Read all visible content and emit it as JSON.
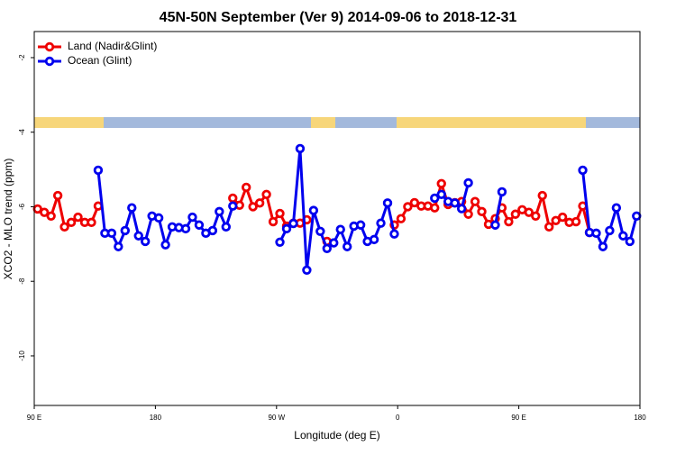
{
  "chart_data": {
    "type": "line",
    "title": "45N-50N September (Ver 9)   2014-09-06 to 2018-12-31",
    "x_label": "Longitude (deg E)",
    "y_label": "XCO2 - MLO trend (ppm)",
    "legend": "top-left",
    "x": [
      92.5,
      97.5,
      102.5,
      107.5,
      112.5,
      117.5,
      122.5,
      127.5,
      132.5,
      137.5,
      142.5,
      147.5,
      152.5,
      157.5,
      162.5,
      167.5,
      172.5,
      177.5,
      182.5,
      187.5,
      192.5,
      197.5,
      202.5,
      207.5,
      212.5,
      217.5,
      222.5,
      227.5,
      232.5,
      237.5,
      242.5,
      247.5,
      252.5,
      257.5,
      262.5,
      267.5,
      272.5,
      277.5,
      282.5,
      287.5,
      292.5,
      297.5,
      302.5,
      307.5,
      312.5,
      317.5,
      322.5,
      327.5,
      332.5,
      337.5,
      342.5,
      347.5,
      352.5,
      357.5,
      362.5,
      367.5,
      372.5,
      377.5,
      382.5,
      387.5,
      392.5,
      397.5,
      402.5,
      407.5,
      412.5,
      417.5,
      422.5,
      427.5,
      432.5,
      437.5,
      442.5,
      447.5,
      452.5,
      457.5,
      462.5,
      467.5,
      472.5,
      477.5,
      482.5,
      487.5,
      492.5,
      497.5,
      502.5,
      507.5,
      512.5,
      517.5,
      522.5,
      527.5,
      532.5,
      537.5
    ],
    "series": [
      {
        "name": "Land (Nadir&Glint)",
        "color": "#ee0000",
        "values": [
          -6.06,
          -6.15,
          -6.25,
          -5.7,
          -6.54,
          -6.42,
          -6.28,
          -6.42,
          -6.42,
          -5.98,
          null,
          null,
          null,
          null,
          null,
          null,
          null,
          null,
          null,
          null,
          null,
          null,
          null,
          null,
          null,
          null,
          null,
          null,
          null,
          -5.77,
          -5.96,
          -5.48,
          -6.0,
          -5.9,
          -5.67,
          -6.4,
          -6.18,
          -6.52,
          -6.44,
          -6.44,
          -6.35,
          null,
          null,
          -6.93,
          null,
          null,
          null,
          null,
          null,
          null,
          null,
          null,
          null,
          -6.49,
          -6.32,
          -6.0,
          -5.89,
          -5.98,
          -5.98,
          -6.03,
          -5.38,
          -5.94,
          -5.89,
          -5.86,
          -6.2,
          -5.86,
          -6.13,
          -6.47,
          -6.32,
          -6.03,
          -6.4,
          -6.2,
          -6.08,
          -6.15,
          -6.25,
          -5.7,
          -6.54,
          -6.37,
          -6.28,
          -6.42,
          -6.4,
          -5.98,
          -6.69,
          null,
          null,
          null,
          null,
          null,
          null,
          null
        ]
      },
      {
        "name": "Ocean (Glint)",
        "color": "#0000ee",
        "values": [
          null,
          null,
          null,
          null,
          null,
          null,
          null,
          null,
          null,
          -5.02,
          -6.71,
          -6.71,
          -7.07,
          -6.64,
          -6.03,
          -6.78,
          -6.93,
          -6.25,
          -6.3,
          -7.02,
          -6.54,
          -6.56,
          -6.59,
          -6.28,
          -6.49,
          -6.71,
          -6.64,
          -6.13,
          -6.54,
          -5.98,
          null,
          null,
          null,
          null,
          null,
          null,
          -6.95,
          -6.59,
          -6.45,
          -4.44,
          -7.7,
          -6.1,
          -6.66,
          -7.12,
          -6.97,
          -6.61,
          -7.07,
          -6.52,
          -6.49,
          -6.93,
          -6.88,
          -6.44,
          -5.9,
          -6.73,
          null,
          null,
          null,
          null,
          null,
          -5.77,
          -5.67,
          -5.86,
          -5.9,
          -6.05,
          -5.36,
          null,
          null,
          null,
          -6.49,
          -5.6,
          null,
          null,
          null,
          null,
          null,
          null,
          null,
          null,
          null,
          null,
          null,
          -5.02,
          -6.69,
          -6.71,
          -7.07,
          -6.64,
          -6.03,
          -6.78,
          -6.93,
          -6.25
        ]
      }
    ],
    "xlim": [
      90,
      540
    ],
    "xticks": [
      {
        "value": 90,
        "label": "90 E"
      },
      180,
      {
        "value": 270,
        "label": "90 W"
      },
      {
        "value": 360,
        "label": "0"
      },
      {
        "value": 450,
        "label": "90 E"
      },
      {
        "value": 540,
        "label": "180"
      }
    ],
    "ylim": [
      -11.33,
      -1.3
    ],
    "yticks": [
      -2,
      -4,
      -6,
      -8,
      -10
    ]
  }
}
